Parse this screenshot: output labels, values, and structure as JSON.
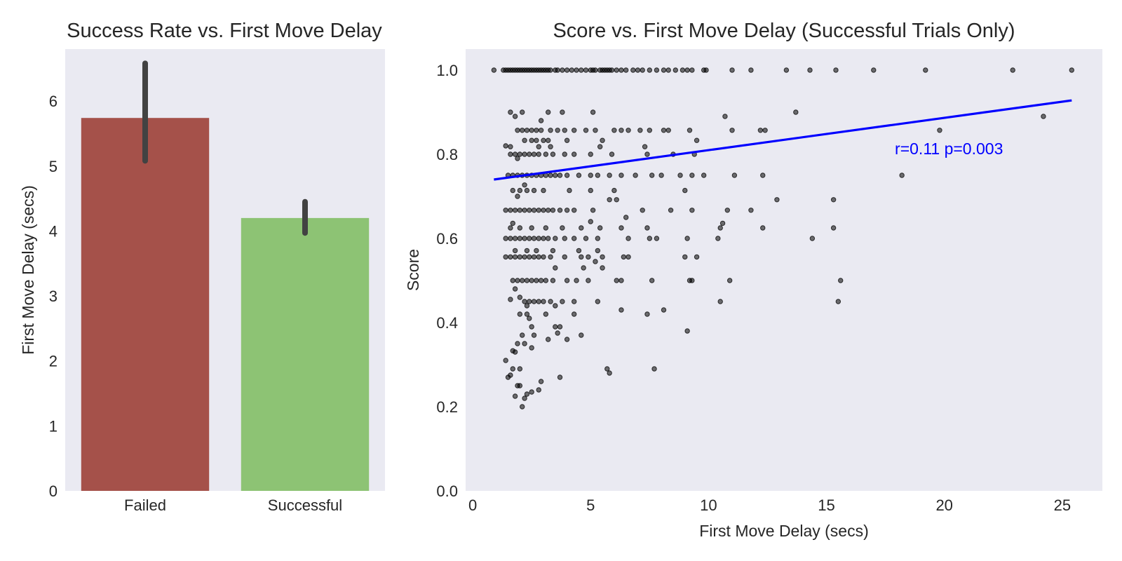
{
  "chart_data": [
    {
      "type": "bar",
      "title": "Success Rate vs. First Move Delay",
      "xlabel": "",
      "ylabel": "First Move Delay (secs)",
      "categories": [
        "Failed",
        "Successful"
      ],
      "values": [
        5.74,
        4.2
      ],
      "error_bars": [
        [
          5.08,
          6.58
        ],
        [
          3.97,
          4.45
        ]
      ],
      "colors": [
        "#a5514a",
        "#8dc374"
      ],
      "ylim": [
        0,
        6.8
      ],
      "yticks": [
        "0",
        "1",
        "2",
        "3",
        "4",
        "5",
        "6"
      ],
      "grid": false,
      "background": "#eaeaf2"
    },
    {
      "type": "scatter",
      "title": "Score vs. First Move Delay (Successful Trials Only)",
      "xlabel": "First Move Delay (secs)",
      "ylabel": "Score",
      "xlim": [
        -0.3,
        26.7
      ],
      "ylim": [
        0,
        1.05
      ],
      "xticks": [
        "0",
        "5",
        "10",
        "15",
        "20",
        "25"
      ],
      "yticks": [
        "0.0",
        "0.2",
        "0.4",
        "0.6",
        "0.8",
        "1.0"
      ],
      "grid": false,
      "background": "#eaeaf2",
      "point_color": "#000000",
      "points": [
        [
          0.9,
          1.0
        ],
        [
          1.3,
          1.0
        ],
        [
          1.4,
          1.0
        ],
        [
          1.5,
          1.0
        ],
        [
          1.6,
          1.0
        ],
        [
          1.7,
          1.0
        ],
        [
          1.8,
          1.0
        ],
        [
          1.9,
          1.0
        ],
        [
          2.0,
          1.0
        ],
        [
          2.1,
          1.0
        ],
        [
          2.2,
          1.0
        ],
        [
          2.3,
          1.0
        ],
        [
          2.4,
          1.0
        ],
        [
          2.5,
          1.0
        ],
        [
          2.6,
          1.0
        ],
        [
          2.7,
          1.0
        ],
        [
          2.8,
          1.0
        ],
        [
          2.9,
          1.0
        ],
        [
          3.0,
          1.0
        ],
        [
          3.1,
          1.0
        ],
        [
          3.2,
          1.0
        ],
        [
          3.3,
          1.0
        ],
        [
          3.5,
          1.0
        ],
        [
          3.6,
          1.0
        ],
        [
          3.8,
          1.0
        ],
        [
          4.0,
          1.0
        ],
        [
          4.2,
          1.0
        ],
        [
          4.4,
          1.0
        ],
        [
          4.6,
          1.0
        ],
        [
          4.8,
          1.0
        ],
        [
          5.0,
          1.0
        ],
        [
          5.1,
          1.0
        ],
        [
          5.2,
          1.0
        ],
        [
          5.4,
          1.0
        ],
        [
          5.5,
          1.0
        ],
        [
          5.6,
          1.0
        ],
        [
          5.7,
          1.0
        ],
        [
          5.8,
          1.0
        ],
        [
          5.9,
          1.0
        ],
        [
          6.1,
          1.0
        ],
        [
          6.3,
          1.0
        ],
        [
          6.5,
          1.0
        ],
        [
          6.8,
          1.0
        ],
        [
          7.0,
          1.0
        ],
        [
          7.2,
          1.0
        ],
        [
          7.5,
          1.0
        ],
        [
          7.8,
          1.0
        ],
        [
          8.1,
          1.0
        ],
        [
          8.3,
          1.0
        ],
        [
          8.6,
          1.0
        ],
        [
          8.9,
          1.0
        ],
        [
          9.1,
          1.0
        ],
        [
          9.3,
          1.0
        ],
        [
          9.8,
          1.0
        ],
        [
          9.9,
          1.0
        ],
        [
          11.0,
          1.0
        ],
        [
          11.8,
          1.0
        ],
        [
          13.3,
          1.0
        ],
        [
          14.3,
          1.0
        ],
        [
          15.4,
          1.0
        ],
        [
          17.0,
          1.0
        ],
        [
          19.2,
          1.0
        ],
        [
          22.9,
          1.0
        ],
        [
          25.4,
          1.0
        ],
        [
          1.6,
          0.9
        ],
        [
          2.1,
          0.9
        ],
        [
          3.2,
          0.9
        ],
        [
          3.8,
          0.9
        ],
        [
          5.1,
          0.9
        ],
        [
          1.8,
          0.89
        ],
        [
          13.7,
          0.9
        ],
        [
          10.7,
          0.89
        ],
        [
          24.2,
          0.89
        ],
        [
          2.9,
          0.88
        ],
        [
          1.9,
          0.857
        ],
        [
          2.1,
          0.857
        ],
        [
          2.3,
          0.857
        ],
        [
          2.5,
          0.857
        ],
        [
          2.7,
          0.857
        ],
        [
          2.9,
          0.857
        ],
        [
          3.3,
          0.857
        ],
        [
          3.6,
          0.857
        ],
        [
          3.9,
          0.857
        ],
        [
          4.3,
          0.857
        ],
        [
          4.8,
          0.857
        ],
        [
          5.2,
          0.857
        ],
        [
          6.0,
          0.857
        ],
        [
          6.3,
          0.857
        ],
        [
          6.6,
          0.857
        ],
        [
          7.1,
          0.857
        ],
        [
          7.5,
          0.857
        ],
        [
          8.1,
          0.857
        ],
        [
          8.3,
          0.857
        ],
        [
          9.2,
          0.857
        ],
        [
          11.0,
          0.857
        ],
        [
          12.2,
          0.857
        ],
        [
          12.4,
          0.857
        ],
        [
          19.8,
          0.857
        ],
        [
          2.2,
          0.833
        ],
        [
          2.5,
          0.833
        ],
        [
          2.7,
          0.833
        ],
        [
          3.0,
          0.833
        ],
        [
          3.2,
          0.833
        ],
        [
          4.0,
          0.833
        ],
        [
          5.5,
          0.833
        ],
        [
          9.5,
          0.833
        ],
        [
          1.6,
          0.818
        ],
        [
          2.8,
          0.818
        ],
        [
          3.3,
          0.818
        ],
        [
          5.4,
          0.818
        ],
        [
          7.3,
          0.818
        ],
        [
          1.4,
          0.82
        ],
        [
          1.6,
          0.8
        ],
        [
          1.8,
          0.8
        ],
        [
          2.0,
          0.8
        ],
        [
          2.2,
          0.8
        ],
        [
          2.4,
          0.8
        ],
        [
          2.6,
          0.8
        ],
        [
          2.8,
          0.8
        ],
        [
          3.1,
          0.8
        ],
        [
          3.4,
          0.8
        ],
        [
          3.9,
          0.8
        ],
        [
          4.3,
          0.8
        ],
        [
          5.0,
          0.8
        ],
        [
          5.9,
          0.8
        ],
        [
          7.4,
          0.8
        ],
        [
          8.5,
          0.8
        ],
        [
          9.4,
          0.8
        ],
        [
          1.9,
          0.79
        ],
        [
          1.5,
          0.75
        ],
        [
          1.7,
          0.75
        ],
        [
          1.9,
          0.75
        ],
        [
          2.1,
          0.75
        ],
        [
          2.3,
          0.75
        ],
        [
          2.5,
          0.75
        ],
        [
          2.7,
          0.75
        ],
        [
          2.9,
          0.75
        ],
        [
          3.1,
          0.75
        ],
        [
          3.3,
          0.75
        ],
        [
          3.5,
          0.75
        ],
        [
          3.7,
          0.75
        ],
        [
          4.0,
          0.75
        ],
        [
          4.5,
          0.75
        ],
        [
          5.0,
          0.75
        ],
        [
          5.3,
          0.75
        ],
        [
          5.8,
          0.75
        ],
        [
          6.3,
          0.75
        ],
        [
          6.9,
          0.75
        ],
        [
          7.6,
          0.75
        ],
        [
          8.0,
          0.75
        ],
        [
          8.8,
          0.75
        ],
        [
          9.3,
          0.75
        ],
        [
          9.8,
          0.75
        ],
        [
          11.1,
          0.75
        ],
        [
          12.3,
          0.75
        ],
        [
          18.2,
          0.75
        ],
        [
          2.2,
          0.727
        ],
        [
          1.7,
          0.714
        ],
        [
          2.0,
          0.714
        ],
        [
          2.3,
          0.714
        ],
        [
          2.6,
          0.714
        ],
        [
          3.0,
          0.714
        ],
        [
          4.1,
          0.714
        ],
        [
          5.0,
          0.714
        ],
        [
          6.0,
          0.714
        ],
        [
          9.0,
          0.714
        ],
        [
          1.9,
          0.7
        ],
        [
          5.8,
          0.692
        ],
        [
          6.1,
          0.692
        ],
        [
          12.9,
          0.692
        ],
        [
          15.3,
          0.692
        ],
        [
          1.4,
          0.667
        ],
        [
          1.6,
          0.667
        ],
        [
          1.8,
          0.667
        ],
        [
          2.0,
          0.667
        ],
        [
          2.2,
          0.667
        ],
        [
          2.4,
          0.667
        ],
        [
          2.6,
          0.667
        ],
        [
          2.8,
          0.667
        ],
        [
          3.0,
          0.667
        ],
        [
          3.2,
          0.667
        ],
        [
          3.4,
          0.667
        ],
        [
          3.7,
          0.667
        ],
        [
          4.0,
          0.667
        ],
        [
          4.3,
          0.667
        ],
        [
          5.1,
          0.667
        ],
        [
          7.2,
          0.667
        ],
        [
          8.4,
          0.667
        ],
        [
          9.3,
          0.667
        ],
        [
          10.8,
          0.667
        ],
        [
          11.8,
          0.667
        ],
        [
          6.5,
          0.65
        ],
        [
          10.6,
          0.636
        ],
        [
          5.0,
          0.64
        ],
        [
          1.7,
          0.636
        ],
        [
          1.6,
          0.625
        ],
        [
          2.0,
          0.625
        ],
        [
          2.5,
          0.625
        ],
        [
          3.1,
          0.625
        ],
        [
          3.8,
          0.625
        ],
        [
          4.6,
          0.625
        ],
        [
          5.4,
          0.625
        ],
        [
          6.3,
          0.625
        ],
        [
          7.4,
          0.625
        ],
        [
          10.5,
          0.625
        ],
        [
          12.3,
          0.625
        ],
        [
          15.3,
          0.625
        ],
        [
          1.4,
          0.6
        ],
        [
          1.6,
          0.6
        ],
        [
          1.8,
          0.6
        ],
        [
          2.0,
          0.6
        ],
        [
          2.2,
          0.6
        ],
        [
          2.4,
          0.6
        ],
        [
          2.6,
          0.6
        ],
        [
          2.8,
          0.6
        ],
        [
          3.0,
          0.6
        ],
        [
          3.2,
          0.6
        ],
        [
          3.5,
          0.6
        ],
        [
          3.9,
          0.6
        ],
        [
          4.3,
          0.6
        ],
        [
          4.8,
          0.6
        ],
        [
          5.3,
          0.6
        ],
        [
          6.6,
          0.6
        ],
        [
          7.5,
          0.6
        ],
        [
          7.8,
          0.6
        ],
        [
          9.1,
          0.6
        ],
        [
          10.4,
          0.6
        ],
        [
          14.4,
          0.6
        ],
        [
          1.8,
          0.571
        ],
        [
          2.3,
          0.571
        ],
        [
          2.7,
          0.571
        ],
        [
          3.4,
          0.571
        ],
        [
          4.5,
          0.571
        ],
        [
          5.3,
          0.571
        ],
        [
          1.4,
          0.556
        ],
        [
          1.6,
          0.556
        ],
        [
          1.8,
          0.556
        ],
        [
          2.0,
          0.556
        ],
        [
          2.2,
          0.556
        ],
        [
          2.4,
          0.556
        ],
        [
          2.6,
          0.556
        ],
        [
          2.8,
          0.556
        ],
        [
          3.0,
          0.556
        ],
        [
          3.3,
          0.556
        ],
        [
          3.9,
          0.556
        ],
        [
          4.6,
          0.556
        ],
        [
          4.9,
          0.556
        ],
        [
          5.5,
          0.556
        ],
        [
          6.4,
          0.556
        ],
        [
          6.6,
          0.556
        ],
        [
          9.0,
          0.556
        ],
        [
          9.5,
          0.556
        ],
        [
          5.2,
          0.545
        ],
        [
          3.5,
          0.53
        ],
        [
          5.5,
          0.53
        ],
        [
          4.7,
          0.53
        ],
        [
          1.7,
          0.5
        ],
        [
          1.9,
          0.5
        ],
        [
          2.1,
          0.5
        ],
        [
          2.3,
          0.5
        ],
        [
          2.5,
          0.5
        ],
        [
          2.7,
          0.5
        ],
        [
          2.9,
          0.5
        ],
        [
          3.1,
          0.5
        ],
        [
          3.4,
          0.5
        ],
        [
          4.0,
          0.5
        ],
        [
          4.4,
          0.5
        ],
        [
          4.9,
          0.5
        ],
        [
          6.1,
          0.5
        ],
        [
          6.3,
          0.5
        ],
        [
          7.6,
          0.5
        ],
        [
          9.2,
          0.5
        ],
        [
          9.3,
          0.5
        ],
        [
          10.9,
          0.5
        ],
        [
          15.6,
          0.5
        ],
        [
          1.8,
          0.48
        ],
        [
          2.0,
          0.46
        ],
        [
          2.2,
          0.45
        ],
        [
          2.4,
          0.45
        ],
        [
          2.6,
          0.45
        ],
        [
          2.8,
          0.45
        ],
        [
          3.0,
          0.45
        ],
        [
          3.3,
          0.45
        ],
        [
          3.8,
          0.45
        ],
        [
          4.3,
          0.45
        ],
        [
          5.3,
          0.45
        ],
        [
          10.5,
          0.45
        ],
        [
          15.5,
          0.45
        ],
        [
          1.6,
          0.455
        ],
        [
          2.3,
          0.44
        ],
        [
          3.5,
          0.44
        ],
        [
          2.0,
          0.42
        ],
        [
          2.3,
          0.42
        ],
        [
          2.4,
          0.41
        ],
        [
          3.1,
          0.42
        ],
        [
          4.3,
          0.42
        ],
        [
          6.3,
          0.43
        ],
        [
          7.4,
          0.42
        ],
        [
          8.1,
          0.43
        ],
        [
          2.5,
          0.39
        ],
        [
          3.5,
          0.39
        ],
        [
          3.7,
          0.39
        ],
        [
          4.6,
          0.37
        ],
        [
          3.6,
          0.375
        ],
        [
          2.1,
          0.37
        ],
        [
          2.6,
          0.37
        ],
        [
          4.0,
          0.36
        ],
        [
          9.1,
          0.38
        ],
        [
          1.9,
          0.35
        ],
        [
          2.2,
          0.35
        ],
        [
          2.5,
          0.34
        ],
        [
          3.2,
          0.36
        ],
        [
          1.7,
          0.333
        ],
        [
          1.8,
          0.33
        ],
        [
          1.4,
          0.31
        ],
        [
          1.7,
          0.29
        ],
        [
          2.0,
          0.29
        ],
        [
          1.6,
          0.275
        ],
        [
          1.5,
          0.27
        ],
        [
          3.7,
          0.27
        ],
        [
          5.7,
          0.29
        ],
        [
          5.8,
          0.28
        ],
        [
          7.7,
          0.29
        ],
        [
          1.9,
          0.25
        ],
        [
          2.0,
          0.25
        ],
        [
          2.9,
          0.26
        ],
        [
          2.8,
          0.24
        ],
        [
          2.5,
          0.235
        ],
        [
          2.3,
          0.23
        ],
        [
          1.8,
          0.225
        ],
        [
          2.2,
          0.22
        ],
        [
          2.1,
          0.2
        ]
      ],
      "regression": {
        "x": [
          0.9,
          25.4
        ],
        "y": [
          0.74,
          0.928
        ],
        "color": "#0000ff"
      },
      "annotation": {
        "text": "r=0.11 p=0.003",
        "x": 17.9,
        "y": 0.8,
        "color": "#0000ff"
      }
    }
  ]
}
